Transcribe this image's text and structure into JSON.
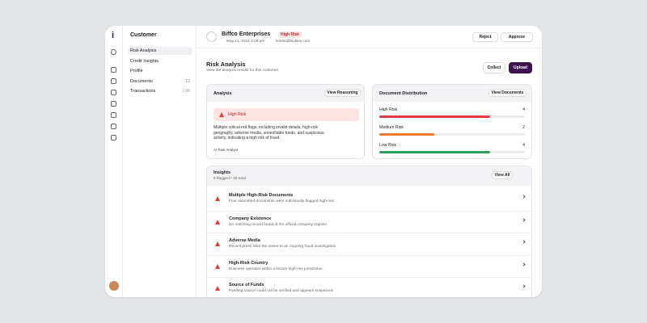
{
  "app": {
    "logo": "i"
  },
  "sidebar": {
    "title": "Customer",
    "items": [
      {
        "label": "Risk Analysis"
      },
      {
        "label": "Credit Insights"
      },
      {
        "label": "Profile"
      },
      {
        "label": "Documents",
        "count": "13"
      },
      {
        "label": "Transactions",
        "count": "190"
      }
    ]
  },
  "header": {
    "name": "Biffco Enterprises",
    "badge": "High Risk",
    "date": "May 11, 2024 4:09 pm",
    "email": "kristin@binkley.com",
    "reject": "Reject",
    "approve": "Approve"
  },
  "page": {
    "title": "Risk Analysis",
    "subtitle": "View the analysis results for this customer",
    "collect": "Collect",
    "upload": "Upload"
  },
  "analysis": {
    "title": "Analysis",
    "button": "View Reasoning",
    "alert": "High Risk",
    "text": "Multiple critical red flags, including invalid details, high-risk geography, adverse media, unverifiable funds, and suspicious activity, indicating a high risk of fraud.",
    "footer": "AI Risk Analyst"
  },
  "distribution": {
    "title": "Document Distribution",
    "button": "View Documents",
    "rows": [
      {
        "label": "High Risk",
        "value": 4,
        "color": "#e03a3e"
      },
      {
        "label": "Medium Risk",
        "value": 2,
        "color": "#f07a2a"
      },
      {
        "label": "Low Risk",
        "value": 4,
        "color": "#2e9e5e"
      }
    ]
  },
  "insights": {
    "title": "Insights",
    "summary": "6 flagged • 16 total",
    "button": "View All",
    "items": [
      {
        "title": "Multiple High-Risk Documents",
        "text": "Four submitted documents were individually flagged high-risk"
      },
      {
        "title": "Company Existence",
        "text": "No matching record found in the official company register"
      },
      {
        "title": "Adverse Media",
        "text": "Recent press links the owner to an ongoing fraud investigation"
      },
      {
        "title": "High-Risk Country",
        "text": "Business operates within a known high-risk jurisdiction"
      },
      {
        "title": "Source of Funds",
        "text": "Funding source could not be verified and appears suspicious"
      }
    ]
  }
}
